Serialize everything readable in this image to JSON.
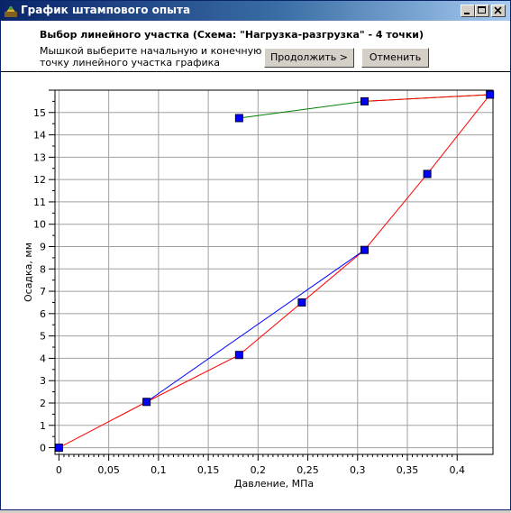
{
  "window": {
    "title": "График штампового опыта",
    "controls": [
      "minimize",
      "maximize",
      "close"
    ]
  },
  "header": {
    "title": "Выбор линейного участка  (Схема: \"Нагрузка-разгрузка\" - 4 точки)",
    "instruction_line1": "Мышкой выберите начальную и конечную",
    "instruction_line2": "точку линейного участка графика",
    "continue_label": "Продолжить >",
    "cancel_label": "Отменить"
  },
  "chart_data": {
    "type": "line",
    "xlabel": "Давление, МПа",
    "ylabel": "Осадка, мм",
    "xlim": [
      -0.004,
      0.436
    ],
    "ylim": [
      -0.3,
      16
    ],
    "x_ticks": [
      0,
      0.05,
      0.1,
      0.15,
      0.2,
      0.25,
      0.3,
      0.35,
      0.4
    ],
    "x_tick_labels": [
      "0",
      "0,05",
      "0,1",
      "0,15",
      "0,2",
      "0,25",
      "0,3",
      "0,35",
      "0,4"
    ],
    "y_ticks": [
      0,
      1,
      2,
      3,
      4,
      5,
      6,
      7,
      8,
      9,
      10,
      11,
      12,
      13,
      14,
      15
    ],
    "y_tick_labels": [
      "0",
      "1",
      "2",
      "3",
      "4",
      "5",
      "6",
      "7",
      "8",
      "9",
      "10",
      "11",
      "12",
      "13",
      "14",
      "15"
    ],
    "grid": true,
    "series": [
      {
        "color": "#ff0000",
        "x": [
          0,
          0.088,
          0.181,
          0.307,
          0.37,
          0.433
        ],
        "y": [
          0,
          2.05,
          4.15,
          8.85,
          12.25,
          15.8
        ]
      },
      {
        "color": "#0000ff",
        "x": [
          0.088,
          0.307
        ],
        "y": [
          2.05,
          8.85
        ]
      },
      {
        "color": "#008000",
        "x": [
          0.181,
          0.307,
          0.433
        ],
        "y": [
          14.75,
          15.5,
          15.8
        ]
      },
      {
        "color": "#ff0000",
        "x": [
          0.307,
          0.433
        ],
        "y": [
          15.5,
          15.8
        ]
      }
    ],
    "points": {
      "marker_color": "#0000ff",
      "x": [
        0,
        0.088,
        0.181,
        0.244,
        0.307,
        0.37,
        0.433,
        0.181,
        0.307
      ],
      "y": [
        0,
        2.05,
        4.15,
        6.5,
        8.85,
        12.25,
        15.8,
        14.75,
        15.5
      ]
    }
  }
}
